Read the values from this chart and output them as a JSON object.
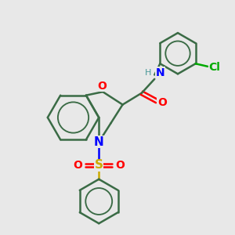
{
  "bg_color": "#e8e8e8",
  "bond_color": "#3a6b45",
  "bond_width": 1.8,
  "o_color": "#ff0000",
  "n_color": "#0000ff",
  "s_color": "#ccaa00",
  "cl_color": "#00aa00",
  "h_color": "#4a9999",
  "font_size": 10,
  "small_font_size": 8,
  "figsize": [
    3.0,
    3.0
  ],
  "dpi": 100,
  "xlim": [
    0,
    10
  ],
  "ylim": [
    0,
    10
  ]
}
